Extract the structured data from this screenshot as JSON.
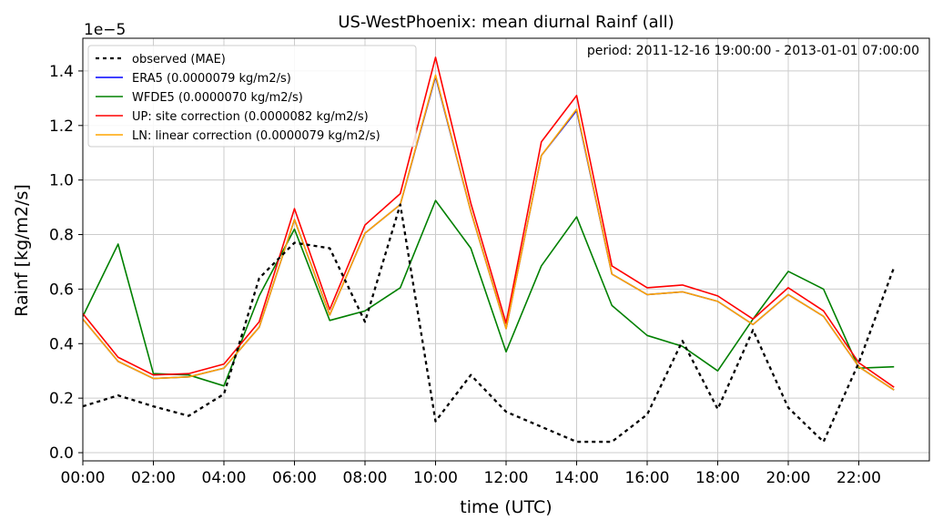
{
  "chart_data": {
    "type": "line",
    "title": "US-WestPhoenix: mean diurnal Rainf (all)",
    "annotation": "period: 2011-12-16 19:00:00 - 2013-01-01 07:00:00",
    "xlabel": "time (UTC)",
    "ylabel": "Rainf [kg/m2/s]",
    "y_offset_label": "1e−5",
    "y_scale_factor": 1e-05,
    "xlim": [
      0,
      24
    ],
    "ylim": [
      -0.03,
      1.52
    ],
    "x_ticks": [
      0,
      2,
      4,
      6,
      8,
      10,
      12,
      14,
      16,
      18,
      20,
      22
    ],
    "x_tick_labels": [
      "00:00",
      "02:00",
      "04:00",
      "06:00",
      "08:00",
      "10:00",
      "12:00",
      "14:00",
      "16:00",
      "18:00",
      "20:00",
      "22:00"
    ],
    "y_ticks": [
      0.0,
      0.2,
      0.4,
      0.6,
      0.8,
      1.0,
      1.2,
      1.4
    ],
    "y_tick_labels": [
      "0.0",
      "0.2",
      "0.4",
      "0.6",
      "0.8",
      "1.0",
      "1.2",
      "1.4"
    ],
    "grid": true,
    "legend_position": "top-left",
    "x": [
      0,
      1,
      2,
      3,
      4,
      5,
      6,
      7,
      8,
      9,
      10,
      11,
      12,
      13,
      14,
      15,
      16,
      17,
      18,
      19,
      20,
      21,
      22,
      23
    ],
    "series": [
      {
        "name": "observed (MAE)",
        "color": "#000000",
        "dashed": true,
        "values": [
          0.17,
          0.21,
          0.17,
          0.135,
          0.215,
          0.64,
          0.77,
          0.75,
          0.48,
          0.91,
          0.115,
          0.285,
          0.15,
          0.095,
          0.04,
          0.04,
          0.14,
          0.41,
          0.16,
          0.45,
          0.165,
          0.04,
          0.33,
          0.68
        ]
      },
      {
        "name": "ERA5 (0.0000079 kg/m2/s)",
        "color": "#0000ff",
        "dashed": false,
        "values": [
          0.49,
          0.335,
          0.272,
          0.278,
          0.31,
          0.46,
          0.855,
          0.505,
          0.805,
          0.91,
          1.38,
          0.885,
          0.455,
          1.09,
          1.255,
          0.655,
          0.58,
          0.59,
          0.555,
          0.47,
          0.58,
          0.5,
          0.315,
          0.23
        ]
      },
      {
        "name": "WFDE5 (0.0000070 kg/m2/s)",
        "color": "#008000",
        "dashed": false,
        "values": [
          0.5,
          0.765,
          0.29,
          0.285,
          0.245,
          0.575,
          0.82,
          0.485,
          0.52,
          0.605,
          0.925,
          0.75,
          0.37,
          0.685,
          0.865,
          0.54,
          0.43,
          0.39,
          0.3,
          0.49,
          0.665,
          0.6,
          0.31,
          0.315
        ]
      },
      {
        "name": "UP: site correction (0.0000082 kg/m2/s)",
        "color": "#ff0000",
        "dashed": false,
        "values": [
          0.51,
          0.35,
          0.285,
          0.29,
          0.325,
          0.48,
          0.895,
          0.525,
          0.835,
          0.95,
          1.45,
          0.915,
          0.475,
          1.14,
          1.31,
          0.685,
          0.605,
          0.615,
          0.575,
          0.49,
          0.605,
          0.52,
          0.33,
          0.24
        ]
      },
      {
        "name": "LN: linear correction (0.0000079 kg/m2/s)",
        "color": "#ffa500",
        "dashed": false,
        "values": [
          0.49,
          0.335,
          0.272,
          0.278,
          0.31,
          0.46,
          0.855,
          0.505,
          0.805,
          0.91,
          1.385,
          0.885,
          0.455,
          1.09,
          1.26,
          0.655,
          0.58,
          0.59,
          0.555,
          0.47,
          0.58,
          0.5,
          0.315,
          0.23
        ]
      }
    ]
  }
}
